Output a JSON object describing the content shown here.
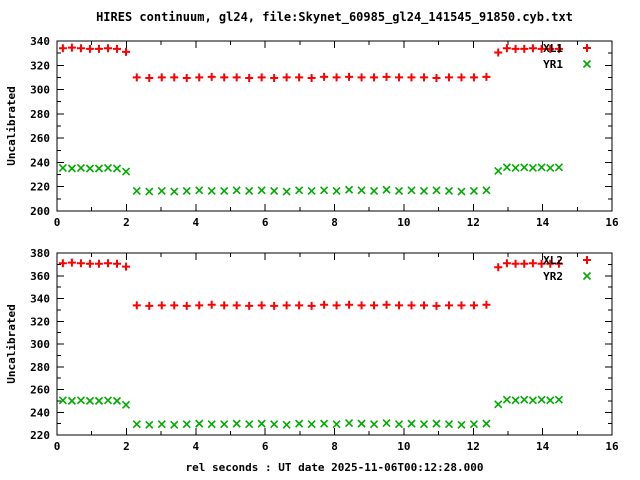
{
  "title": "HIRES continuum, gl24, file:Skynet_60985_gl24_141545_91850.cyb.txt",
  "xlabel": "rel seconds : UT date 2025-11-06T00:12:28.000",
  "colors": {
    "series_red": "#ff0000",
    "series_green": "#00ab00",
    "axis": "#000000",
    "background": "#ffffff"
  },
  "chart_data": [
    {
      "type": "scatter",
      "panel": "top",
      "ylabel": "Uncalibrated",
      "xlim": [
        0,
        16
      ],
      "ylim": [
        200,
        340
      ],
      "xticks": [
        0,
        2,
        4,
        6,
        8,
        10,
        12,
        14,
        16
      ],
      "yticks": [
        200,
        220,
        240,
        260,
        280,
        300,
        320,
        340
      ],
      "minor_xtick_step": 1,
      "minor_ytick_step": 10,
      "grid": false,
      "legend_position": "top-right-inside",
      "x": [
        0.17,
        0.43,
        0.69,
        0.95,
        1.21,
        1.47,
        1.73,
        1.99,
        2.3,
        2.66,
        3.02,
        3.38,
        3.74,
        4.1,
        4.46,
        4.82,
        5.18,
        5.54,
        5.9,
        6.26,
        6.62,
        6.98,
        7.34,
        7.7,
        8.06,
        8.42,
        8.78,
        9.14,
        9.5,
        9.86,
        10.22,
        10.58,
        10.94,
        11.3,
        11.66,
        12.02,
        12.38,
        12.72,
        12.97,
        13.22,
        13.47,
        13.72,
        13.97,
        14.22,
        14.47
      ],
      "series": [
        {
          "name": "XL1",
          "marker": "plus",
          "color": "#ff0000",
          "y": [
            334,
            334.5,
            334,
            333.5,
            333.5,
            334,
            333.5,
            331,
            310,
            309.5,
            310,
            310,
            309.5,
            310,
            310.5,
            310,
            310,
            309.5,
            310,
            309.5,
            310,
            310,
            309.5,
            310.5,
            310,
            310.5,
            310,
            310,
            310.5,
            310,
            310,
            310,
            309.5,
            310,
            310,
            310,
            310.5,
            330.5,
            334,
            333.5,
            333.5,
            334,
            333.5,
            333.5,
            333.5
          ]
        },
        {
          "name": "YR1",
          "marker": "cross",
          "color": "#00ab00",
          "y": [
            235.5,
            235,
            235.5,
            235,
            235,
            235.5,
            235,
            232.5,
            216.5,
            216,
            216.5,
            216,
            216.5,
            217,
            216.5,
            216.5,
            217,
            216.5,
            217,
            216.5,
            216,
            217,
            216.5,
            217,
            216.5,
            217.5,
            217,
            216.5,
            217.5,
            216.5,
            217,
            216.5,
            217,
            216.5,
            216,
            216.5,
            217,
            233,
            236,
            235.5,
            236,
            235.5,
            236,
            235.5,
            236
          ]
        }
      ]
    },
    {
      "type": "scatter",
      "panel": "bottom",
      "ylabel": "Uncalibrated",
      "xlim": [
        0,
        16
      ],
      "ylim": [
        220,
        380
      ],
      "xticks": [
        0,
        2,
        4,
        6,
        8,
        10,
        12,
        14,
        16
      ],
      "yticks": [
        220,
        240,
        260,
        280,
        300,
        320,
        340,
        360,
        380
      ],
      "minor_xtick_step": 1,
      "minor_ytick_step": 10,
      "grid": false,
      "legend_position": "top-right-inside",
      "x": [
        0.17,
        0.43,
        0.69,
        0.95,
        1.21,
        1.47,
        1.73,
        1.99,
        2.3,
        2.66,
        3.02,
        3.38,
        3.74,
        4.1,
        4.46,
        4.82,
        5.18,
        5.54,
        5.9,
        6.26,
        6.62,
        6.98,
        7.34,
        7.7,
        8.06,
        8.42,
        8.78,
        9.14,
        9.5,
        9.86,
        10.22,
        10.58,
        10.94,
        11.3,
        11.66,
        12.02,
        12.38,
        12.72,
        12.97,
        13.22,
        13.47,
        13.72,
        13.97,
        14.22,
        14.47
      ],
      "series": [
        {
          "name": "XL2",
          "marker": "plus",
          "color": "#ff0000",
          "y": [
            371,
            371.5,
            371,
            370.5,
            370.5,
            371,
            370.5,
            368,
            334,
            333.5,
            334,
            334,
            333.5,
            334,
            334.5,
            334,
            334,
            333.5,
            334,
            333.5,
            334,
            334,
            333.5,
            334.5,
            334,
            334.5,
            334,
            334,
            334.5,
            334,
            334,
            334,
            333.5,
            334,
            334,
            334,
            334.5,
            367.5,
            371,
            370.5,
            370.5,
            371,
            370.5,
            370.5,
            370.5
          ]
        },
        {
          "name": "YR2",
          "marker": "cross",
          "color": "#00ab00",
          "y": [
            250.5,
            250,
            250.5,
            250,
            250,
            250.5,
            250,
            246.5,
            229.5,
            229,
            229.5,
            229,
            229.5,
            230,
            229.5,
            229.5,
            230,
            229.5,
            230,
            229.5,
            229,
            230,
            229.5,
            230,
            229.5,
            230.5,
            230,
            229.5,
            230.5,
            229.5,
            230,
            229.5,
            230,
            229.5,
            229,
            229.5,
            230,
            247,
            251,
            250.5,
            251,
            250.5,
            251,
            250.5,
            251
          ]
        }
      ]
    }
  ]
}
